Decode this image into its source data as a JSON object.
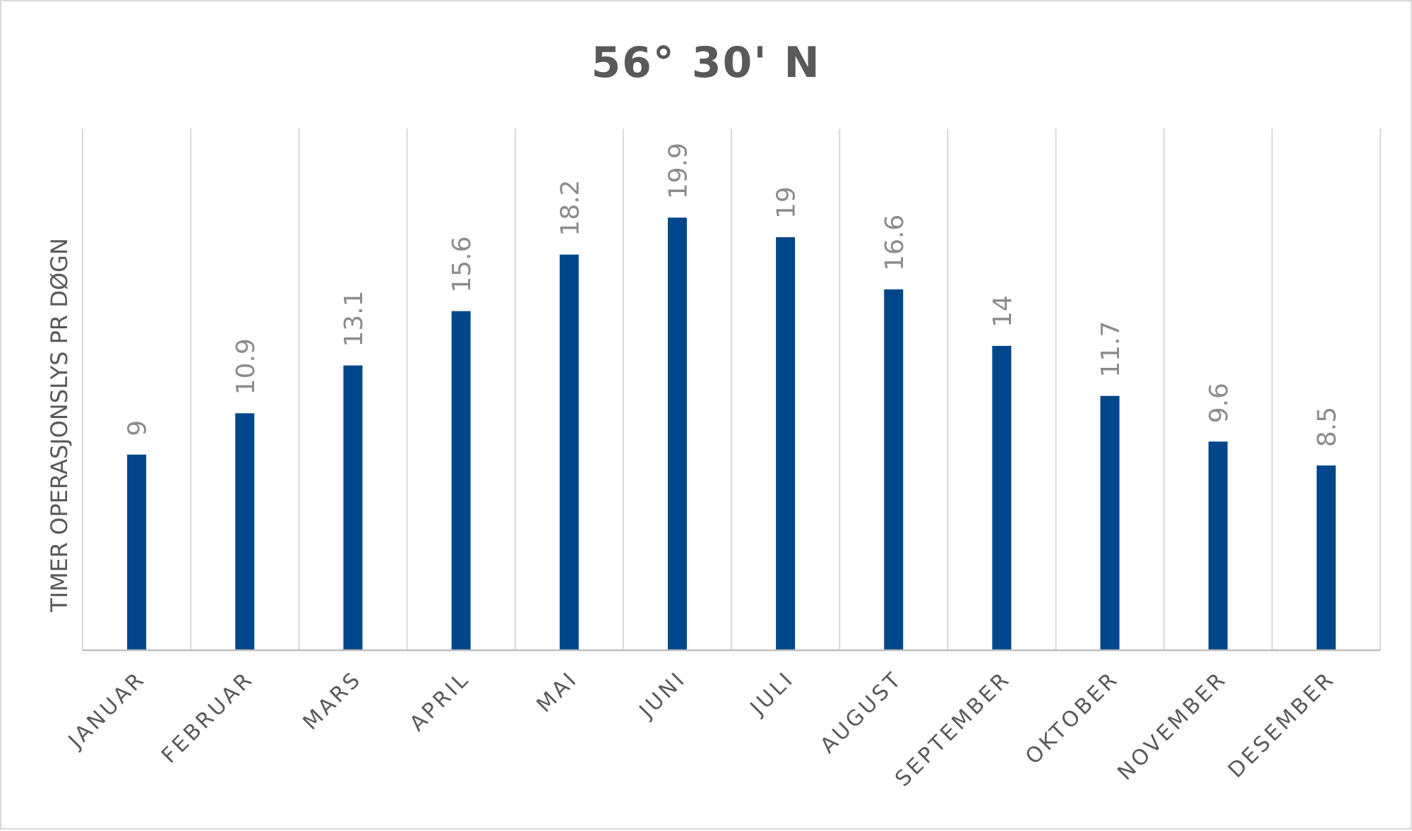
{
  "chart_data": {
    "type": "bar",
    "title": "56° 30' N",
    "xlabel": "",
    "ylabel": "TIMER OPERASJONSLYS PR DØGN",
    "categories": [
      "JANUAR",
      "FEBRUAR",
      "MARS",
      "APRIL",
      "MAI",
      "JUNI",
      "JULI",
      "AUGUST",
      "SEPTEMBER",
      "OKTOBER",
      "NOVEMBER",
      "DESEMBER"
    ],
    "values": [
      9,
      10.9,
      13.1,
      15.6,
      18.2,
      19.9,
      19,
      16.6,
      14,
      11.7,
      9.6,
      8.5
    ],
    "ylim": [
      0,
      24
    ],
    "grid": "vertical",
    "data_labels": true,
    "colors": {
      "bar": "#00468B",
      "grid": "#D9D9D9",
      "text": "#595959",
      "value_label": "#8C8C8C"
    }
  }
}
